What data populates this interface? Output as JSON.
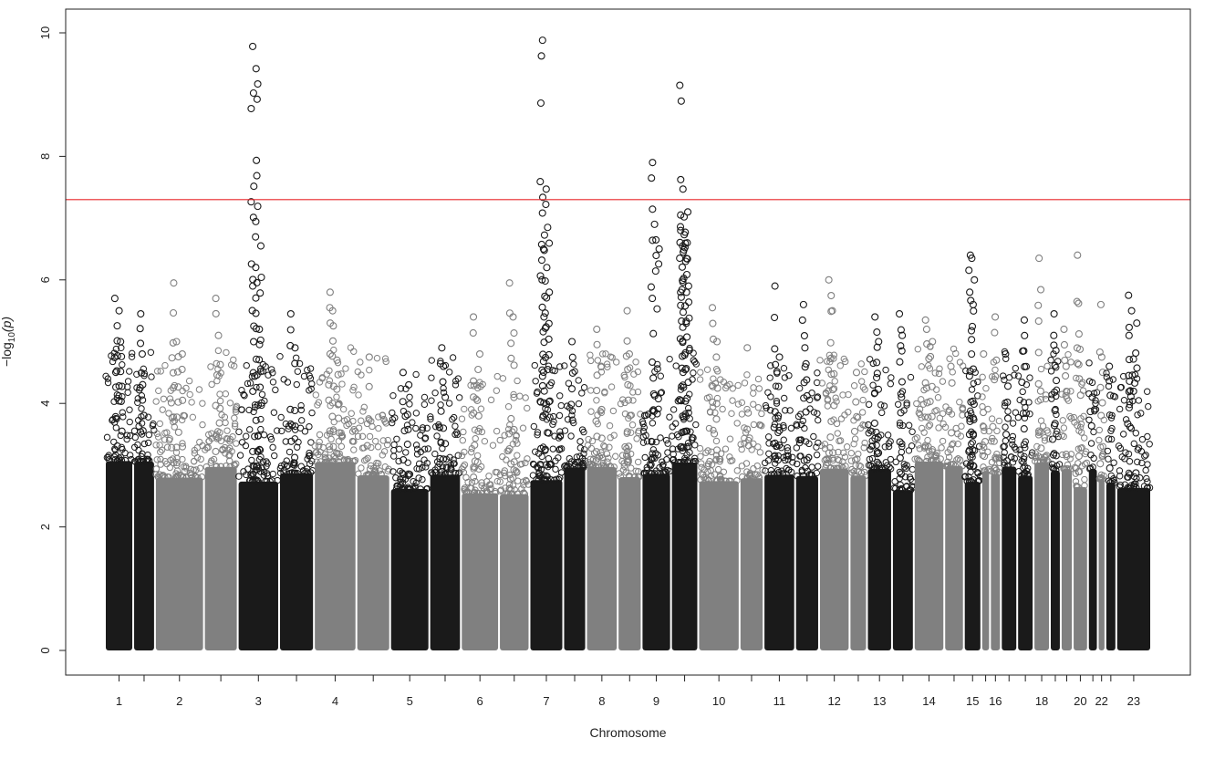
{
  "chart_data": {
    "type": "scatter",
    "subtype": "manhattan",
    "title": "",
    "xlabel": "Chromosome",
    "ylabel_prefix": "−log",
    "ylabel_sub": "10",
    "ylabel_suffix": "(p)",
    "ylim": [
      -0.4,
      10.4
    ],
    "yticks": [
      0,
      2,
      4,
      6,
      8,
      10
    ],
    "grid": false,
    "legend": "none",
    "threshold": {
      "value": 7.3,
      "color": "#e8262a"
    },
    "colors": {
      "dark": "#1a1a1a",
      "light": "#808080"
    },
    "chromosomes": [
      {
        "label": "1",
        "color": "dark",
        "peaks": [
          {
            "y": 5.7
          },
          {
            "y": 5.5
          },
          {
            "y": 5.0
          }
        ]
      },
      {
        "label": "",
        "color": "dark",
        "peaks": [
          {
            "y": 5.45
          },
          {
            "y": 4.8
          }
        ]
      },
      {
        "label": "2",
        "color": "light",
        "peaks": [
          {
            "y": 5.95
          },
          {
            "y": 5.0
          },
          {
            "y": 4.8
          }
        ]
      },
      {
        "label": "",
        "color": "light",
        "peaks": [
          {
            "y": 5.7
          },
          {
            "y": 5.1
          }
        ]
      },
      {
        "label": "3",
        "color": "dark",
        "peaks": [
          {
            "y": 9.78
          },
          {
            "y": 9.42
          },
          {
            "y": 6.55
          },
          {
            "y": 5.9
          },
          {
            "y": 5.2
          }
        ]
      },
      {
        "label": "",
        "color": "dark",
        "peaks": [
          {
            "y": 5.45
          },
          {
            "y": 4.9
          }
        ]
      },
      {
        "label": "4",
        "color": "light",
        "peaks": [
          {
            "y": 5.8
          },
          {
            "y": 5.5
          },
          {
            "y": 4.7
          }
        ]
      },
      {
        "label": "",
        "color": "light",
        "peaks": [
          {
            "y": 4.75
          }
        ]
      },
      {
        "label": "5",
        "color": "dark",
        "peaks": [
          {
            "y": 4.5
          },
          {
            "y": 4.3
          }
        ]
      },
      {
        "label": "",
        "color": "dark",
        "peaks": [
          {
            "y": 4.9
          },
          {
            "y": 4.6
          }
        ]
      },
      {
        "label": "6",
        "color": "light",
        "peaks": [
          {
            "y": 5.4
          },
          {
            "y": 4.8
          }
        ]
      },
      {
        "label": "",
        "color": "light",
        "peaks": [
          {
            "y": 5.95
          },
          {
            "y": 5.4
          }
        ]
      },
      {
        "label": "7",
        "color": "dark",
        "peaks": [
          {
            "y": 9.88
          },
          {
            "y": 7.47
          },
          {
            "y": 6.85
          },
          {
            "y": 6.5
          },
          {
            "y": 6.2
          },
          {
            "y": 5.8
          },
          {
            "y": 5.4
          }
        ]
      },
      {
        "label": "",
        "color": "dark",
        "peaks": [
          {
            "y": 5.0
          }
        ]
      },
      {
        "label": "8",
        "color": "light",
        "peaks": [
          {
            "y": 5.2
          },
          {
            "y": 4.6
          }
        ]
      },
      {
        "label": "",
        "color": "light",
        "peaks": [
          {
            "y": 5.5
          },
          {
            "y": 4.8
          }
        ]
      },
      {
        "label": "9",
        "color": "dark",
        "peaks": [
          {
            "y": 7.9
          },
          {
            "y": 6.9
          },
          {
            "y": 6.5
          },
          {
            "y": 5.7
          }
        ]
      },
      {
        "label": "",
        "color": "dark",
        "peaks": [
          {
            "y": 9.15
          },
          {
            "y": 7.47
          },
          {
            "y": 7.1
          },
          {
            "y": 7.05
          },
          {
            "y": 7.02
          },
          {
            "y": 6.6
          },
          {
            "y": 6.45
          },
          {
            "y": 6.3
          },
          {
            "y": 5.9
          }
        ]
      },
      {
        "label": "10",
        "color": "light",
        "peaks": [
          {
            "y": 5.55
          },
          {
            "y": 5.0
          }
        ]
      },
      {
        "label": "",
        "color": "light",
        "peaks": [
          {
            "y": 4.9
          }
        ]
      },
      {
        "label": "11",
        "color": "dark",
        "peaks": [
          {
            "y": 5.9
          },
          {
            "y": 4.75
          }
        ]
      },
      {
        "label": "",
        "color": "dark",
        "peaks": [
          {
            "y": 5.6
          },
          {
            "y": 4.9
          }
        ]
      },
      {
        "label": "12",
        "color": "light",
        "peaks": [
          {
            "y": 6.0
          },
          {
            "y": 5.5
          }
        ]
      },
      {
        "label": "",
        "color": "light",
        "peaks": [
          {
            "y": 4.5
          }
        ]
      },
      {
        "label": "13",
        "color": "dark",
        "peaks": [
          {
            "y": 5.4
          },
          {
            "y": 5.0
          }
        ]
      },
      {
        "label": "",
        "color": "dark",
        "peaks": [
          {
            "y": 5.45
          },
          {
            "y": 5.1
          }
        ]
      },
      {
        "label": "14",
        "color": "light",
        "peaks": [
          {
            "y": 5.35
          },
          {
            "y": 5.2
          },
          {
            "y": 5.0
          }
        ]
      },
      {
        "label": "",
        "color": "light",
        "peaks": [
          {
            "y": 4.6
          }
        ]
      },
      {
        "label": "15",
        "color": "dark",
        "peaks": [
          {
            "y": 6.4
          },
          {
            "y": 6.35
          },
          {
            "y": 6.0
          },
          {
            "y": 5.8
          },
          {
            "y": 5.6
          }
        ]
      },
      {
        "label": "",
        "color": "light",
        "peaks": [
          {
            "y": 4.8
          }
        ]
      },
      {
        "label": "16",
        "color": "light",
        "peaks": [
          {
            "y": 5.4
          },
          {
            "y": 4.7
          }
        ]
      },
      {
        "label": "",
        "color": "dark",
        "peaks": [
          {
            "y": 4.8
          }
        ]
      },
      {
        "label": "",
        "color": "dark",
        "peaks": [
          {
            "y": 5.35
          },
          {
            "y": 4.85
          }
        ]
      },
      {
        "label": "18",
        "color": "light",
        "peaks": [
          {
            "y": 6.35
          },
          {
            "y": 4.2
          }
        ]
      },
      {
        "label": "",
        "color": "dark",
        "peaks": [
          {
            "y": 5.45
          },
          {
            "y": 5.1
          }
        ]
      },
      {
        "label": "",
        "color": "light",
        "peaks": [
          {
            "y": 5.2
          },
          {
            "y": 4.6
          }
        ]
      },
      {
        "label": "20",
        "color": "light",
        "peaks": [
          {
            "y": 6.4
          },
          {
            "y": 5.62
          }
        ]
      },
      {
        "label": "",
        "color": "dark",
        "peaks": [
          {
            "y": 4.1
          }
        ]
      },
      {
        "label": "22",
        "color": "light",
        "peaks": [
          {
            "y": 5.6
          },
          {
            "y": 4.75
          }
        ]
      },
      {
        "label": "",
        "color": "dark",
        "peaks": [
          {
            "y": 4.6
          }
        ]
      },
      {
        "label": "23",
        "color": "dark",
        "peaks": [
          {
            "y": 5.75
          },
          {
            "y": 5.5
          },
          {
            "y": 5.3
          },
          {
            "y": 5.1
          }
        ]
      }
    ]
  }
}
